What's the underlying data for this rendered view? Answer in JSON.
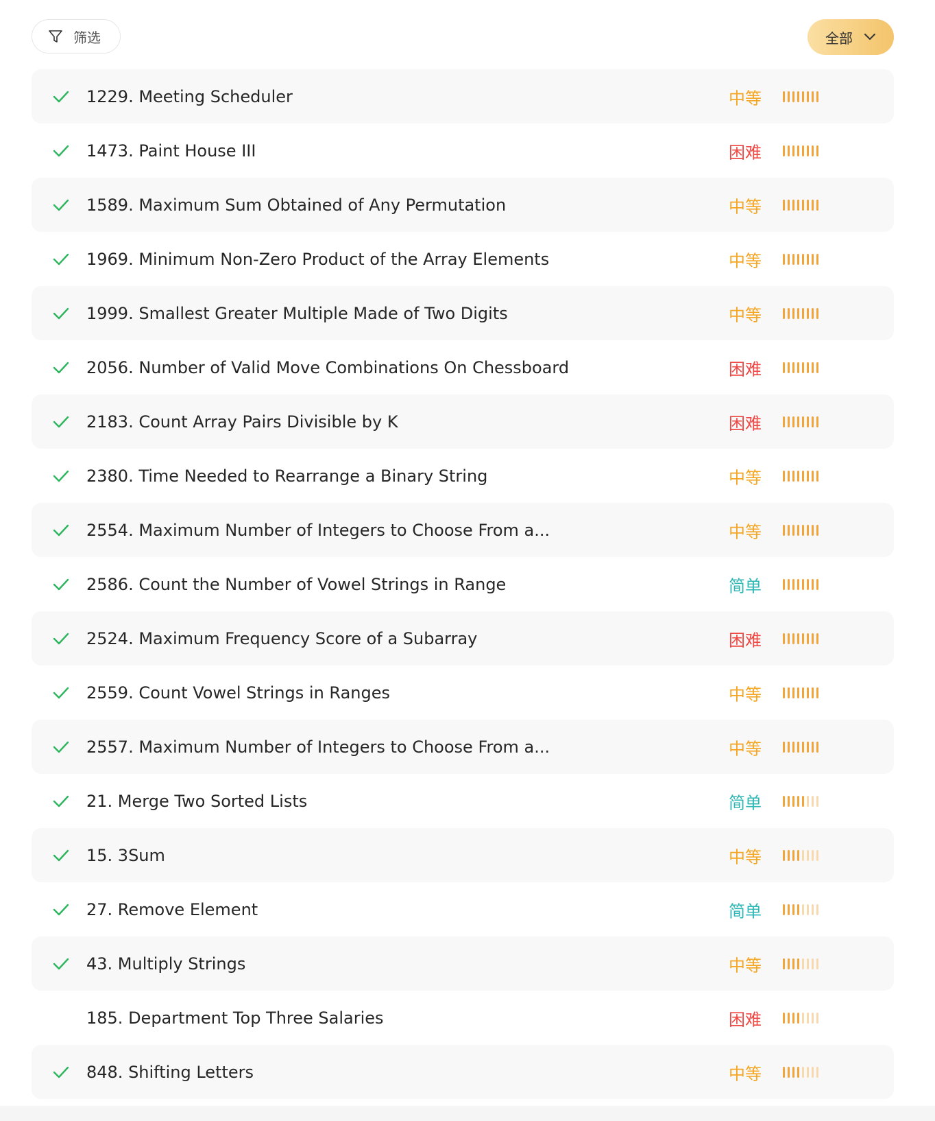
{
  "toolbar": {
    "filter_label": "筛选",
    "filter_icon": "filter-funnel-icon",
    "all_label": "全部",
    "all_icon": "chevron-down-icon"
  },
  "difficulty_colors": {
    "中等": "#f5a623",
    "困难": "#ef4743",
    "简单": "#2db7b5"
  },
  "problems": [
    {
      "title": "1229. Meeting Scheduler",
      "difficulty": "中等",
      "solved": true,
      "acceptance_level": 8
    },
    {
      "title": "1473. Paint House III",
      "difficulty": "困难",
      "solved": true,
      "acceptance_level": 8
    },
    {
      "title": "1589. Maximum Sum Obtained of Any Permutation",
      "difficulty": "中等",
      "solved": true,
      "acceptance_level": 8
    },
    {
      "title": "1969. Minimum Non-Zero Product of the Array Elements",
      "difficulty": "中等",
      "solved": true,
      "acceptance_level": 8
    },
    {
      "title": "1999. Smallest Greater Multiple Made of Two Digits",
      "difficulty": "中等",
      "solved": true,
      "acceptance_level": 8
    },
    {
      "title": "2056. Number of Valid Move Combinations On Chessboard",
      "difficulty": "困难",
      "solved": true,
      "acceptance_level": 8
    },
    {
      "title": "2183. Count Array Pairs Divisible by K",
      "difficulty": "困难",
      "solved": true,
      "acceptance_level": 8
    },
    {
      "title": "2380. Time Needed to Rearrange a Binary String",
      "difficulty": "中等",
      "solved": true,
      "acceptance_level": 8
    },
    {
      "title": "2554. Maximum Number of Integers to Choose From a...",
      "difficulty": "中等",
      "solved": true,
      "acceptance_level": 8
    },
    {
      "title": "2586. Count the Number of Vowel Strings in Range",
      "difficulty": "简单",
      "solved": true,
      "acceptance_level": 8
    },
    {
      "title": "2524. Maximum Frequency Score of a Subarray",
      "difficulty": "困难",
      "solved": true,
      "acceptance_level": 8
    },
    {
      "title": "2559. Count Vowel Strings in Ranges",
      "difficulty": "中等",
      "solved": true,
      "acceptance_level": 8
    },
    {
      "title": "2557. Maximum Number of Integers to Choose From a...",
      "difficulty": "中等",
      "solved": true,
      "acceptance_level": 8
    },
    {
      "title": "21. Merge Two Sorted Lists",
      "difficulty": "简单",
      "solved": true,
      "acceptance_level": 5
    },
    {
      "title": "15. 3Sum",
      "difficulty": "中等",
      "solved": true,
      "acceptance_level": 4
    },
    {
      "title": "27. Remove Element",
      "difficulty": "简单",
      "solved": true,
      "acceptance_level": 4
    },
    {
      "title": "43. Multiply Strings",
      "difficulty": "中等",
      "solved": true,
      "acceptance_level": 4
    },
    {
      "title": "185. Department Top Three Salaries",
      "difficulty": "困难",
      "solved": false,
      "acceptance_level": 4
    },
    {
      "title": "848. Shifting Letters",
      "difficulty": "中等",
      "solved": true,
      "acceptance_level": 4
    }
  ]
}
